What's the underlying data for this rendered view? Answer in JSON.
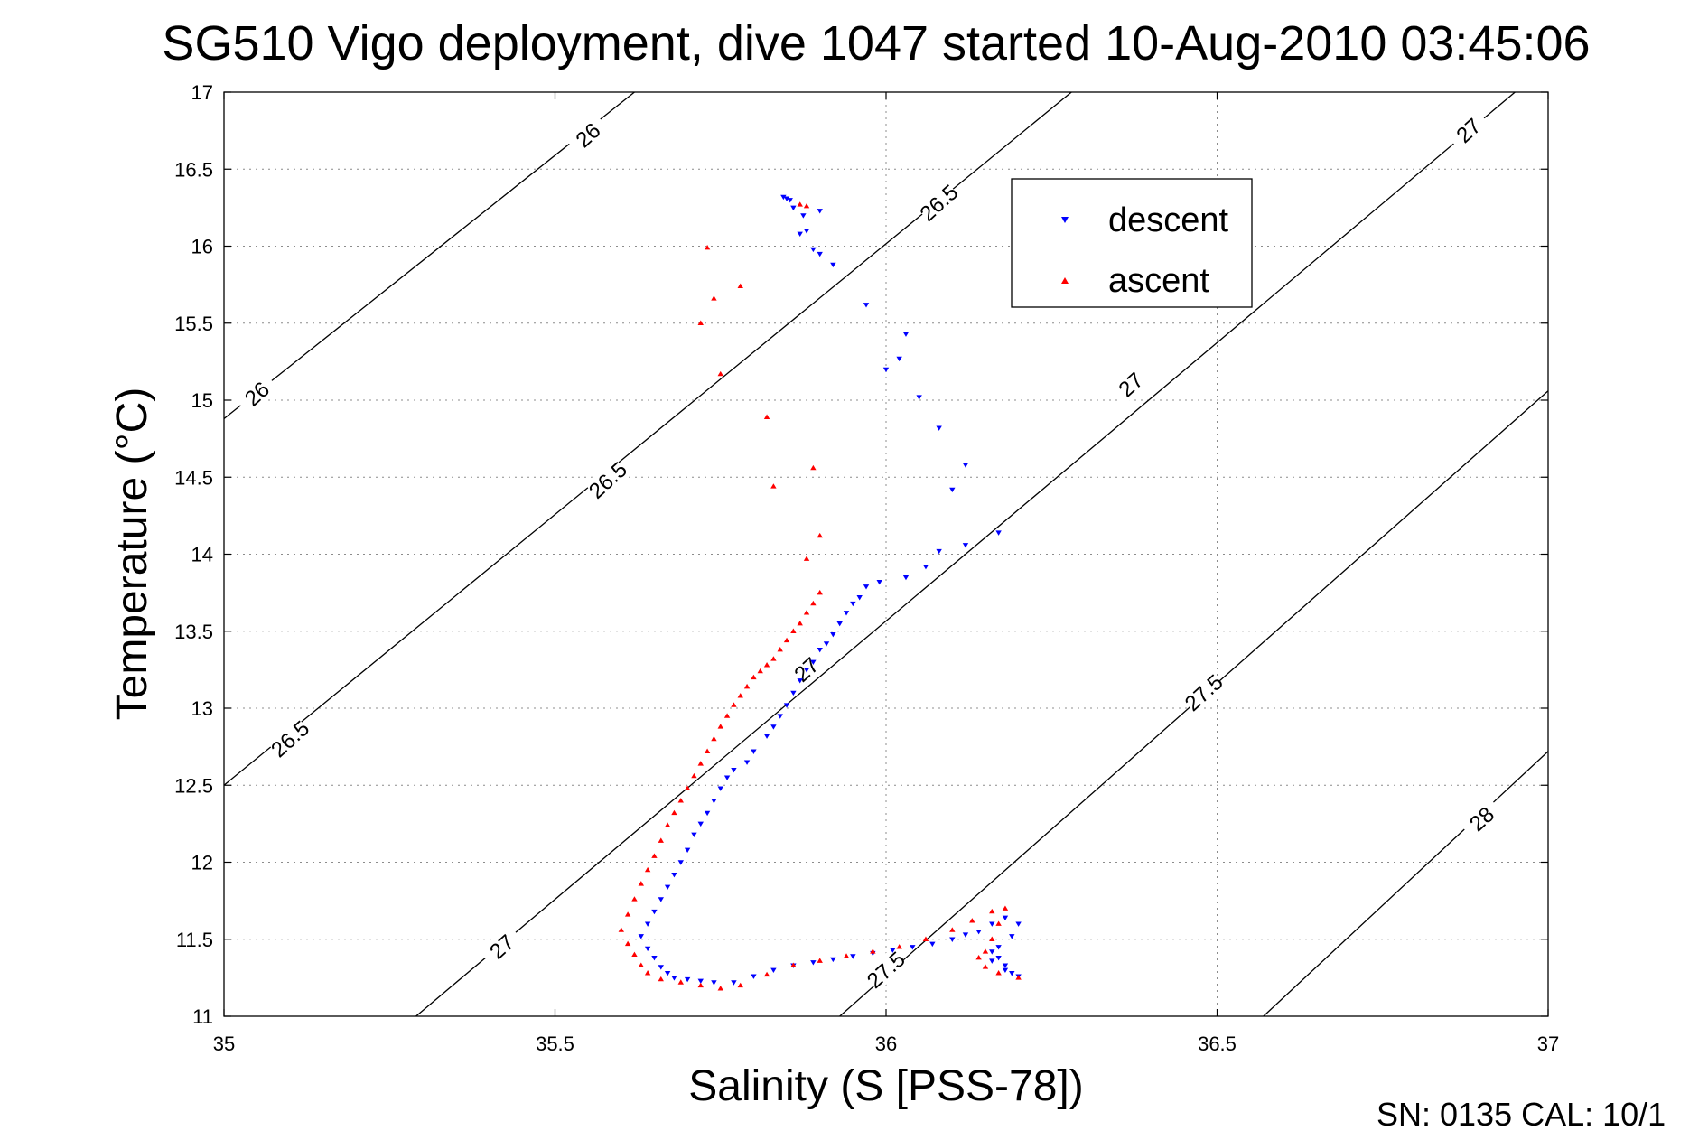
{
  "chart_data": {
    "type": "scatter",
    "title": "SG510 Vigo deployment, dive 1047 started 10-Aug-2010 03:45:06",
    "xlabel": "Salinity (S [PSS-78])",
    "ylabel": "Temperature (°C)",
    "xlim": [
      35,
      37
    ],
    "ylim": [
      11,
      17
    ],
    "x_ticks": [
      "35",
      "35.5",
      "36",
      "36.5",
      "37"
    ],
    "y_ticks": [
      "11",
      "11.5",
      "12",
      "12.5",
      "13",
      "13.5",
      "14",
      "14.5",
      "15",
      "15.5",
      "16",
      "16.5",
      "17"
    ],
    "grid": true,
    "legend_position": "top-right",
    "footer": "SN: 0135  CAL: 10/1",
    "contours": [
      {
        "label": "26",
        "points": [
          [
            35.0,
            14.88
          ],
          [
            35.62,
            17.0
          ]
        ],
        "labels_at": [
          [
            35.05,
            15.04
          ],
          [
            35.55,
            16.72
          ]
        ]
      },
      {
        "label": "26.5",
        "points": [
          [
            35.0,
            12.5
          ],
          [
            36.28,
            17.0
          ]
        ],
        "labels_at": [
          [
            35.1,
            12.8
          ],
          [
            35.58,
            14.48
          ],
          [
            36.08,
            16.28
          ]
        ]
      },
      {
        "label": "27",
        "points": [
          [
            35.29,
            11.0
          ],
          [
            36.95,
            17.0
          ]
        ],
        "labels_at": [
          [
            35.42,
            11.45
          ],
          [
            35.88,
            13.25
          ],
          [
            36.37,
            15.1
          ]
        ]
      },
      {
        "label": "27.5",
        "points": [
          [
            35.93,
            11.0
          ],
          [
            37.0,
            15.06
          ]
        ],
        "labels_at": [
          [
            36.0,
            11.3
          ],
          [
            36.48,
            13.1
          ]
        ]
      },
      {
        "label": "28",
        "points": [
          [
            36.57,
            11.0
          ],
          [
            37.0,
            12.72
          ]
        ],
        "labels_at": [
          [
            36.9,
            12.28
          ]
        ]
      },
      {
        "label": "27",
        "points": [
          [
            36.95,
            17.0
          ]
        ],
        "labels_at": [
          [
            36.88,
            16.75
          ]
        ]
      }
    ],
    "series": [
      {
        "name": "descent",
        "color": "#0000ff",
        "marker": "triangle-down",
        "points": [
          [
            35.845,
            16.32
          ],
          [
            35.85,
            16.31
          ],
          [
            35.855,
            16.3
          ],
          [
            35.86,
            16.25
          ],
          [
            35.875,
            16.2
          ],
          [
            35.9,
            16.23
          ],
          [
            35.87,
            16.08
          ],
          [
            35.88,
            16.1
          ],
          [
            35.89,
            15.98
          ],
          [
            35.9,
            15.95
          ],
          [
            35.92,
            15.88
          ],
          [
            35.97,
            15.62
          ],
          [
            36.03,
            15.43
          ],
          [
            36.02,
            15.27
          ],
          [
            36.0,
            15.2
          ],
          [
            36.05,
            15.02
          ],
          [
            36.08,
            14.82
          ],
          [
            36.12,
            14.58
          ],
          [
            36.1,
            14.42
          ],
          [
            36.17,
            14.14
          ],
          [
            36.12,
            14.06
          ],
          [
            36.08,
            14.02
          ],
          [
            36.06,
            13.92
          ],
          [
            36.03,
            13.85
          ],
          [
            35.99,
            13.82
          ],
          [
            35.97,
            13.79
          ],
          [
            35.96,
            13.72
          ],
          [
            35.95,
            13.68
          ],
          [
            35.94,
            13.62
          ],
          [
            35.93,
            13.55
          ],
          [
            35.92,
            13.48
          ],
          [
            35.91,
            13.42
          ],
          [
            35.9,
            13.38
          ],
          [
            35.89,
            13.3
          ],
          [
            35.88,
            13.25
          ],
          [
            35.87,
            13.18
          ],
          [
            35.86,
            13.1
          ],
          [
            35.85,
            13.02
          ],
          [
            35.84,
            12.95
          ],
          [
            35.83,
            12.88
          ],
          [
            35.82,
            12.82
          ],
          [
            35.8,
            12.72
          ],
          [
            35.79,
            12.65
          ],
          [
            35.77,
            12.6
          ],
          [
            35.76,
            12.55
          ],
          [
            35.75,
            12.48
          ],
          [
            35.74,
            12.4
          ],
          [
            35.73,
            12.32
          ],
          [
            35.72,
            12.25
          ],
          [
            35.71,
            12.18
          ],
          [
            35.7,
            12.08
          ],
          [
            35.69,
            12.0
          ],
          [
            35.68,
            11.92
          ],
          [
            35.67,
            11.84
          ],
          [
            35.66,
            11.76
          ],
          [
            35.65,
            11.68
          ],
          [
            35.64,
            11.6
          ],
          [
            35.63,
            11.52
          ],
          [
            35.64,
            11.44
          ],
          [
            35.65,
            11.38
          ],
          [
            35.66,
            11.32
          ],
          [
            35.67,
            11.28
          ],
          [
            35.68,
            11.25
          ],
          [
            35.7,
            11.24
          ],
          [
            35.72,
            11.23
          ],
          [
            35.74,
            11.22
          ],
          [
            35.77,
            11.22
          ],
          [
            35.8,
            11.26
          ],
          [
            35.83,
            11.3
          ],
          [
            35.86,
            11.33
          ],
          [
            35.89,
            11.35
          ],
          [
            35.92,
            11.37
          ],
          [
            35.95,
            11.39
          ],
          [
            35.98,
            11.41
          ],
          [
            36.01,
            11.43
          ],
          [
            36.04,
            11.45
          ],
          [
            36.07,
            11.47
          ],
          [
            36.1,
            11.5
          ],
          [
            36.12,
            11.53
          ],
          [
            36.14,
            11.55
          ],
          [
            36.16,
            11.6
          ],
          [
            36.18,
            11.64
          ],
          [
            36.2,
            11.6
          ],
          [
            36.19,
            11.52
          ],
          [
            36.17,
            11.45
          ],
          [
            36.16,
            11.42
          ],
          [
            36.17,
            11.38
          ],
          [
            36.18,
            11.33
          ],
          [
            36.19,
            11.28
          ],
          [
            36.2,
            11.26
          ],
          [
            36.18,
            11.3
          ],
          [
            36.16,
            11.36
          ]
        ]
      },
      {
        "name": "ascent",
        "color": "#ff0000",
        "marker": "triangle-up",
        "points": [
          [
            35.87,
            16.27
          ],
          [
            35.88,
            16.26
          ],
          [
            35.73,
            15.99
          ],
          [
            35.78,
            15.74
          ],
          [
            35.74,
            15.66
          ],
          [
            35.72,
            15.5
          ],
          [
            35.75,
            15.17
          ],
          [
            35.82,
            14.89
          ],
          [
            35.89,
            14.56
          ],
          [
            35.83,
            14.44
          ],
          [
            35.9,
            14.12
          ],
          [
            35.88,
            13.97
          ],
          [
            35.9,
            13.75
          ],
          [
            35.89,
            13.68
          ],
          [
            35.88,
            13.62
          ],
          [
            35.87,
            13.55
          ],
          [
            35.86,
            13.5
          ],
          [
            35.85,
            13.44
          ],
          [
            35.84,
            13.38
          ],
          [
            35.83,
            13.32
          ],
          [
            35.82,
            13.28
          ],
          [
            35.81,
            13.24
          ],
          [
            35.8,
            13.2
          ],
          [
            35.79,
            13.14
          ],
          [
            35.78,
            13.08
          ],
          [
            35.77,
            13.02
          ],
          [
            35.76,
            12.95
          ],
          [
            35.75,
            12.88
          ],
          [
            35.74,
            12.8
          ],
          [
            35.73,
            12.72
          ],
          [
            35.72,
            12.64
          ],
          [
            35.71,
            12.56
          ],
          [
            35.7,
            12.48
          ],
          [
            35.69,
            12.4
          ],
          [
            35.68,
            12.32
          ],
          [
            35.67,
            12.24
          ],
          [
            35.66,
            12.14
          ],
          [
            35.65,
            12.04
          ],
          [
            35.64,
            11.95
          ],
          [
            35.63,
            11.86
          ],
          [
            35.62,
            11.76
          ],
          [
            35.61,
            11.66
          ],
          [
            35.6,
            11.56
          ],
          [
            35.61,
            11.47
          ],
          [
            35.62,
            11.4
          ],
          [
            35.63,
            11.33
          ],
          [
            35.64,
            11.28
          ],
          [
            35.66,
            11.24
          ],
          [
            35.69,
            11.22
          ],
          [
            35.72,
            11.2
          ],
          [
            35.75,
            11.18
          ],
          [
            35.78,
            11.2
          ],
          [
            35.82,
            11.27
          ],
          [
            35.86,
            11.33
          ],
          [
            35.9,
            11.36
          ],
          [
            35.94,
            11.39
          ],
          [
            35.98,
            11.42
          ],
          [
            36.02,
            11.45
          ],
          [
            36.06,
            11.5
          ],
          [
            36.1,
            11.56
          ],
          [
            36.13,
            11.62
          ],
          [
            36.16,
            11.68
          ],
          [
            36.18,
            11.7
          ],
          [
            36.17,
            11.6
          ],
          [
            36.16,
            11.5
          ],
          [
            36.15,
            11.42
          ],
          [
            36.14,
            11.38
          ],
          [
            36.15,
            11.32
          ],
          [
            36.17,
            11.28
          ],
          [
            36.2,
            11.25
          ]
        ]
      }
    ]
  }
}
